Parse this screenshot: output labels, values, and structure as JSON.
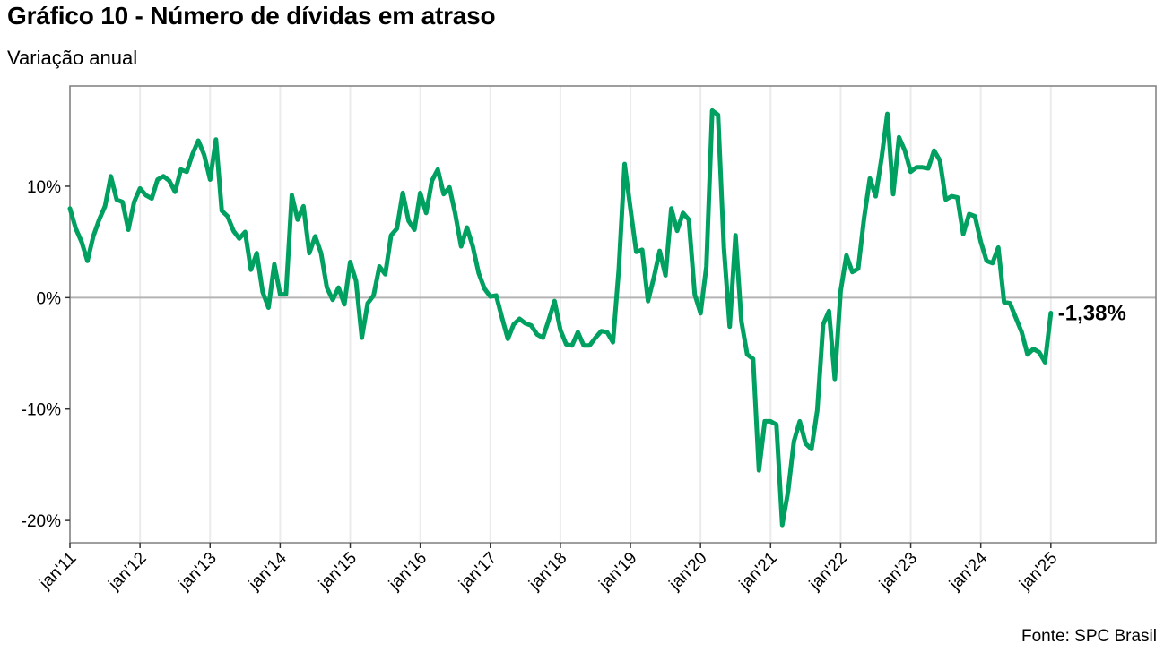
{
  "header": {
    "title": "Gráfico 10 - Número de dívidas em atraso",
    "subtitle": "Variação anual",
    "source": "Fonte: SPC Brasil"
  },
  "colors": {
    "line": "#00a060",
    "zero_line": "#b4b4b4",
    "grid": "#ebebeb",
    "frame": "#7f7f7f"
  },
  "chart_data": {
    "type": "line",
    "title": "Gráfico 10 - Número de dívidas em atraso",
    "subtitle": "Variação anual",
    "xlabel": "",
    "ylabel": "",
    "x_start": "2011-01",
    "x_frequency": "monthly",
    "xlim": [
      "2011-01",
      "2026-07"
    ],
    "ylim": [
      -22,
      19
    ],
    "grid": true,
    "y_ticks": [
      10,
      0,
      -10,
      -20
    ],
    "y_tick_labels": [
      "10%",
      "0%",
      "-10%",
      "-20%"
    ],
    "x_tick_labels": [
      "jan'11",
      "jan'12",
      "jan'13",
      "jan'14",
      "jan'15",
      "jan'16",
      "jan'17",
      "jan'18",
      "jan'19",
      "jan'20",
      "jan'21",
      "jan'22",
      "jan'23",
      "jan'24",
      "jan'25"
    ],
    "last_value_label": "-1,38%",
    "series": [
      {
        "values": [
          8.0,
          6.2,
          5.0,
          3.3,
          5.5,
          7.0,
          8.2,
          10.9,
          8.8,
          8.6,
          6.1,
          8.6,
          9.8,
          9.2,
          8.9,
          10.6,
          10.9,
          10.5,
          9.5,
          11.5,
          11.3,
          12.9,
          14.1,
          12.8,
          10.6,
          14.2,
          7.8,
          7.3,
          6.0,
          5.3,
          5.9,
          2.5,
          4.0,
          0.5,
          -0.9,
          3.0,
          0.3,
          0.3,
          9.2,
          7.0,
          8.2,
          4.0,
          5.5,
          4.0,
          0.9,
          -0.2,
          0.9,
          -0.6,
          3.2,
          1.5,
          -3.6,
          -0.5,
          0.2,
          2.8,
          2.1,
          5.6,
          6.2,
          9.4,
          6.9,
          6.1,
          9.4,
          7.6,
          10.5,
          11.5,
          9.3,
          9.9,
          7.5,
          4.6,
          6.3,
          4.6,
          2.2,
          0.8,
          0.1,
          0.2,
          -1.8,
          -3.7,
          -2.4,
          -1.9,
          -2.3,
          -2.5,
          -3.3,
          -3.6,
          -2.0,
          -0.3,
          -2.9,
          -4.2,
          -4.3,
          -3.1,
          -4.3,
          -4.3,
          -3.6,
          -3.0,
          -3.1,
          -4.0,
          2.5,
          12.0,
          8.0,
          4.1,
          4.3,
          -0.3,
          1.8,
          4.2,
          2.0,
          8.0,
          6.0,
          7.6,
          7.0,
          0.3,
          -1.4,
          2.8,
          16.8,
          16.4,
          4.5,
          -2.6,
          5.6,
          -2.1,
          -5.1,
          -5.5,
          -15.5,
          -11.1,
          -11.1,
          -11.4,
          -20.4,
          -17.4,
          -12.9,
          -11.1,
          -13.1,
          -13.6,
          -10.1,
          -2.4,
          -1.2,
          -7.3,
          0.6,
          3.8,
          2.3,
          2.6,
          7.1,
          10.7,
          9.1,
          12.5,
          16.5,
          9.3,
          14.4,
          13.2,
          11.3,
          11.7,
          11.7,
          11.6,
          13.2,
          12.3,
          8.8,
          9.1,
          9.0,
          5.7,
          7.5,
          7.3,
          5.0,
          3.3,
          3.1,
          4.5,
          -0.4,
          -0.5,
          -1.8,
          -3.1,
          -5.1,
          -4.6,
          -4.9,
          -5.8,
          -1.38
        ]
      }
    ]
  }
}
